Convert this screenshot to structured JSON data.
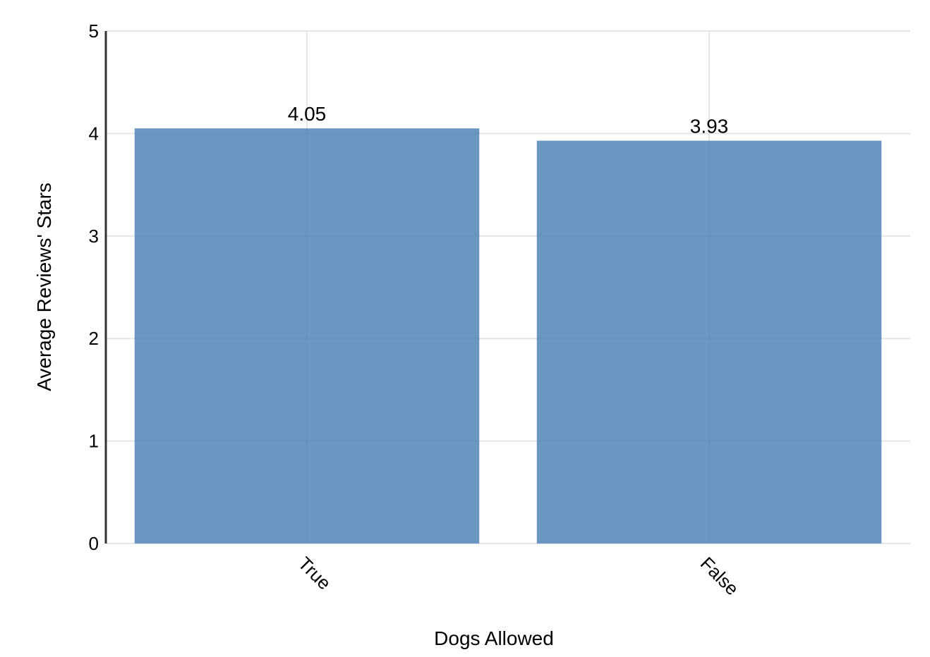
{
  "chart_data": {
    "type": "bar",
    "categories": [
      "True",
      "False"
    ],
    "values": [
      4.05,
      3.93
    ],
    "data_labels": [
      "4.05",
      "3.93"
    ],
    "title": "",
    "xlabel": "Dogs Allowed",
    "ylabel": "Average Reviews' Stars",
    "ylim": [
      0,
      5
    ],
    "yticks": [
      "0",
      "1",
      "2",
      "3",
      "4",
      "5"
    ],
    "bar_color": "#4a7fb5",
    "grid": true,
    "x_tick_rotation": "45-degree clockwise"
  }
}
